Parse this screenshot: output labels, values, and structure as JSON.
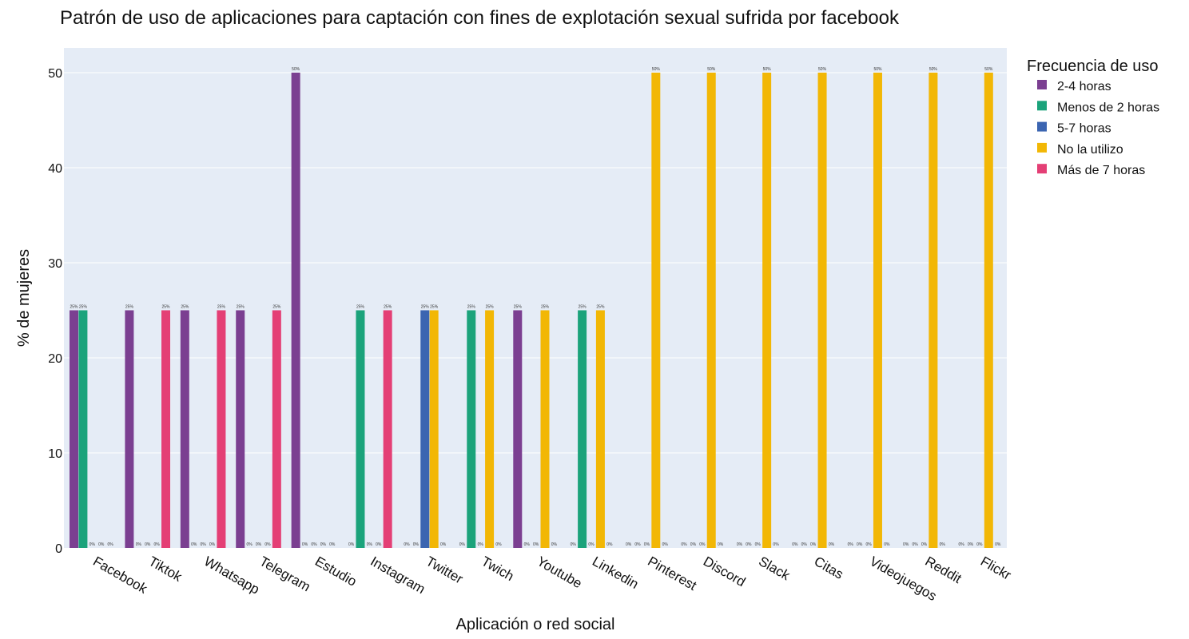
{
  "chart_data": {
    "type": "bar",
    "title": "Patrón de uso de aplicaciones para captación con fines de explotación sexual sufrida por facebook",
    "xlabel": "Aplicación o red social",
    "ylabel": "% de mujeres",
    "ylim": [
      0,
      52.6
    ],
    "yticks": [
      "0",
      "10",
      "20",
      "30",
      "40",
      "50"
    ],
    "grid": true,
    "legend_title": "Frecuencia de uso",
    "legend_position": "right",
    "categories": [
      "Facebook",
      "Tiktok",
      "Whatsapp",
      "Telegram",
      "Estudio",
      "Instagram",
      "Twitter",
      "Twich",
      "Youtube",
      "Linkedin",
      "Pinterest",
      "Discord",
      "Slack",
      "Citas",
      "Videojuegos",
      "Reddit",
      "Flickr"
    ],
    "series": [
      {
        "name": "2-4 horas",
        "color": "#7B3F91",
        "values": [
          25,
          25,
          25,
          25,
          50,
          0,
          0,
          0,
          25,
          0,
          0,
          0,
          0,
          0,
          0,
          0,
          0
        ],
        "labels": [
          "25%",
          "25%",
          "25%",
          "25%",
          "50%",
          "0%",
          "0%",
          "0%",
          "25%",
          "0%",
          "0%",
          "0%",
          "0%",
          "0%",
          "0%",
          "0%",
          "0%"
        ]
      },
      {
        "name": "Menos de 2 horas",
        "color": "#1BA37B",
        "values": [
          25,
          0,
          0,
          0,
          0,
          25,
          0,
          25,
          0,
          25,
          0,
          0,
          0,
          0,
          0,
          0,
          0
        ],
        "labels": [
          "25%",
          "0%",
          "0%",
          "0%",
          "0%",
          "25%",
          "0%",
          "25%",
          "0%",
          "25%",
          "0%",
          "0%",
          "0%",
          "0%",
          "0%",
          "0%",
          "0%"
        ]
      },
      {
        "name": "5-7 horas",
        "color": "#3B65B1",
        "values": [
          0,
          0,
          0,
          0,
          0,
          0,
          25,
          0,
          0,
          0,
          0,
          0,
          0,
          0,
          0,
          0,
          0
        ],
        "labels": [
          "0%",
          "0%",
          "0%",
          "0%",
          "0%",
          "0%",
          "25%",
          "0%",
          "0%",
          "0%",
          "0%",
          "0%",
          "0%",
          "0%",
          "0%",
          "0%",
          "0%"
        ]
      },
      {
        "name": "No la utilizo",
        "color": "#F2B705",
        "values": [
          0,
          0,
          0,
          0,
          0,
          0,
          25,
          25,
          25,
          25,
          50,
          50,
          50,
          50,
          50,
          50,
          50
        ],
        "labels": [
          "0%",
          "0%",
          "0%",
          "0%",
          "0%",
          "0%",
          "25%",
          "25%",
          "25%",
          "25%",
          "50%",
          "50%",
          "50%",
          "50%",
          "50%",
          "50%",
          "50%"
        ]
      },
      {
        "name": "Más de 7 horas",
        "color": "#E43F75",
        "values": [
          0,
          25,
          25,
          25,
          0,
          25,
          0,
          0,
          0,
          0,
          0,
          0,
          0,
          0,
          0,
          0,
          0
        ],
        "labels": [
          "0%",
          "25%",
          "25%",
          "25%",
          "0%",
          "25%",
          "0%",
          "0%",
          "0%",
          "0%",
          "0%",
          "0%",
          "0%",
          "0%",
          "0%",
          "0%",
          "0%"
        ]
      }
    ]
  }
}
